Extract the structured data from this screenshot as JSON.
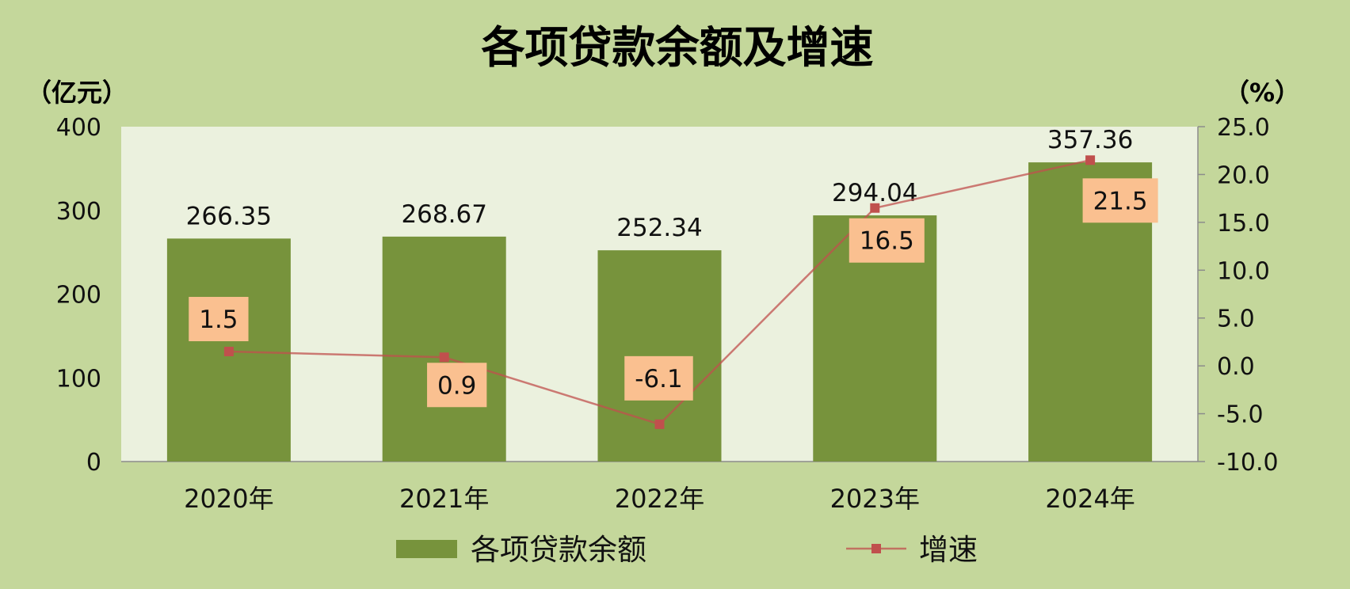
{
  "colors": {
    "background": "#c4d79b",
    "plot_area": "#ebf1de",
    "axis": "#8c8c8c",
    "label_box": "#fac090"
  },
  "chart_data": {
    "type": "bar",
    "title": "各项贷款余额及增速",
    "categories": [
      "2020年",
      "2021年",
      "2022年",
      "2023年",
      "2024年"
    ],
    "series": [
      {
        "name": "各项贷款余额",
        "type": "bar",
        "axis": "left",
        "values": [
          266.35,
          268.67,
          252.34,
          294.04,
          357.36
        ],
        "color": "#77933c"
      },
      {
        "name": "增速",
        "type": "line",
        "axis": "right",
        "values": [
          1.5,
          0.9,
          -6.1,
          16.5,
          21.5
        ],
        "color": "#c0504d"
      }
    ],
    "ylabel": "（亿元）",
    "y2label": "（%）",
    "ylim": [
      0,
      400
    ],
    "y2lim": [
      -10,
      25
    ],
    "yticks": [
      "0",
      "100",
      "200",
      "300",
      "400"
    ],
    "y2ticks": [
      "-10.0",
      "-5.0",
      "0.0",
      "5.0",
      "10.0",
      "15.0",
      "20.0",
      "25.0"
    ],
    "grid": false,
    "legend": "bottom"
  }
}
